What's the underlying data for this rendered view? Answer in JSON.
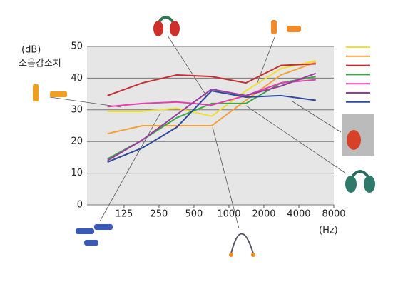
{
  "chart_data": {
    "type": "line",
    "y_label_unit": "(dB)",
    "y_label": "소음감소치",
    "x_label": "(Hz)",
    "x": [
      90,
      180,
      355,
      710,
      1400,
      2800,
      5600
    ],
    "xlim": [
      60,
      8000
    ],
    "x_log": true,
    "xticks": [
      125,
      250,
      500,
      1000,
      2000,
      4000,
      8000
    ],
    "ylim": [
      0,
      50
    ],
    "yticks": [
      0,
      10,
      20,
      30,
      40,
      50
    ],
    "grid": true,
    "series": [
      {
        "color": "#f3df2e",
        "values": [
          29.5,
          29.5,
          30.5,
          28,
          36,
          43,
          45.5
        ]
      },
      {
        "color": "#f4a13a",
        "values": [
          22.5,
          25,
          25,
          25,
          33,
          41,
          45
        ]
      },
      {
        "color": "#c62f32",
        "values": [
          34.5,
          38.5,
          41,
          40.5,
          38.5,
          44,
          44.5
        ]
      },
      {
        "color": "#3aa746",
        "values": [
          14.5,
          20.5,
          27.5,
          32,
          32,
          38.5,
          40.5
        ]
      },
      {
        "color": "#e33fae",
        "values": [
          31,
          32,
          32.5,
          31.5,
          34.5,
          38.5,
          39.5
        ]
      },
      {
        "color": "#9a3c9e",
        "values": [
          14,
          20.5,
          28.5,
          36.5,
          34.5,
          37.5,
          41.5
        ]
      },
      {
        "color": "#2b4a9b",
        "values": [
          13.5,
          18,
          24.5,
          36,
          34,
          34.5,
          33
        ]
      }
    ]
  }
}
